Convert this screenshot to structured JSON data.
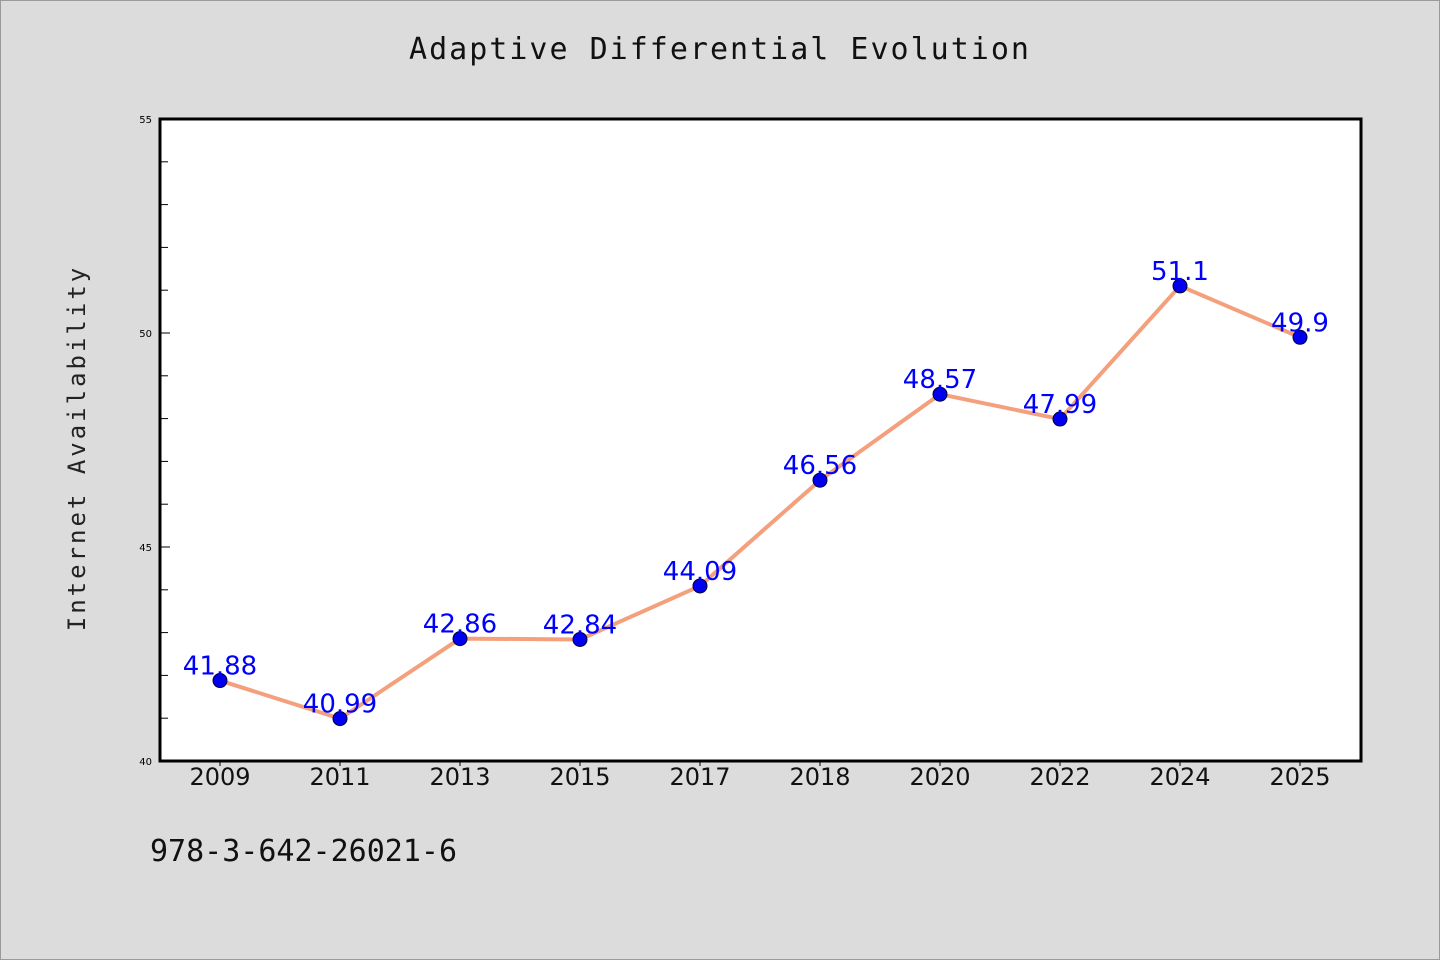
{
  "chart_data": {
    "type": "line",
    "title": "Adaptive Differential Evolution",
    "xlabel": "",
    "ylabel": "Internet Availability",
    "categories": [
      "2009",
      "2011",
      "2013",
      "2015",
      "2017",
      "2018",
      "2020",
      "2022",
      "2024",
      "2025"
    ],
    "values": [
      41.88,
      40.99,
      42.86,
      42.84,
      44.09,
      46.56,
      48.57,
      47.99,
      51.1,
      49.9
    ],
    "data_labels": [
      "41.88",
      "40.99",
      "42.86",
      "42.84",
      "44.09",
      "46.56",
      "48.57",
      "47.99",
      "51.1",
      "49.9"
    ],
    "ylim": [
      40,
      55
    ],
    "y_ticks": [
      "40",
      "45",
      "50",
      "55"
    ],
    "grid": false,
    "line_color": "#f4a07c",
    "marker_color": "#0000ee",
    "label_color": "#0000ff"
  },
  "footer": {
    "code": "978-3-642-26021-6"
  }
}
